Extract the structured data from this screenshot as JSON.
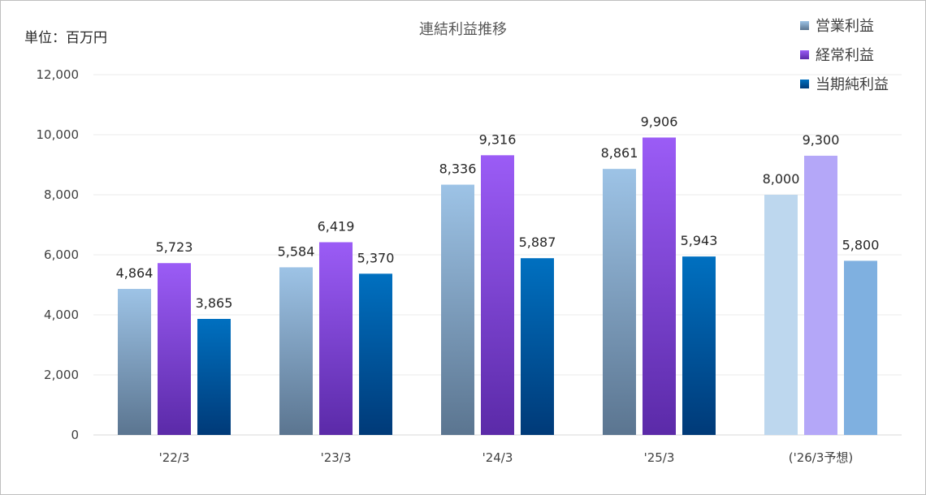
{
  "chart_data": {
    "type": "bar",
    "title": "連結利益推移",
    "unit_label": "単位：百万円",
    "categories": [
      "'22/3",
      "'23/3",
      "'24/3",
      "'25/3",
      "('26/3予想)"
    ],
    "series": [
      {
        "name": "営業利益",
        "values": [
          4864,
          5584,
          8336,
          8861,
          8000
        ]
      },
      {
        "name": "経常利益",
        "values": [
          5723,
          6419,
          9316,
          9906,
          9300
        ]
      },
      {
        "name": "当期純利益",
        "values": [
          3865,
          5370,
          5887,
          5943,
          5800
        ]
      }
    ],
    "value_labels": [
      [
        "4,864",
        "5,584",
        "8,336",
        "8,861",
        "8,000"
      ],
      [
        "5,723",
        "6,419",
        "9,316",
        "9,906",
        "9,300"
      ],
      [
        "3,865",
        "5,370",
        "5,887",
        "5,943",
        "5,800"
      ]
    ],
    "ylim": [
      0,
      12000
    ],
    "yticks": [
      0,
      2000,
      4000,
      6000,
      8000,
      10000,
      12000
    ],
    "ytick_labels": [
      "0",
      "2,000",
      "4,000",
      "6,000",
      "8,000",
      "10,000",
      "12,000"
    ],
    "forecast_category_index": 4,
    "grid": true,
    "legend_position": "top-right",
    "colors": {
      "series_top": [
        "#9dc3e6",
        "#9b5cf6",
        "#0070c0"
      ],
      "series_bottom": [
        "#5b7590",
        "#5b2aa8",
        "#003a78"
      ],
      "forecast": [
        "#bdd7ee",
        "#b4a7f8",
        "#7fb0e0"
      ],
      "grid": "#ebebeb",
      "axis": "#d9d9d9"
    }
  }
}
